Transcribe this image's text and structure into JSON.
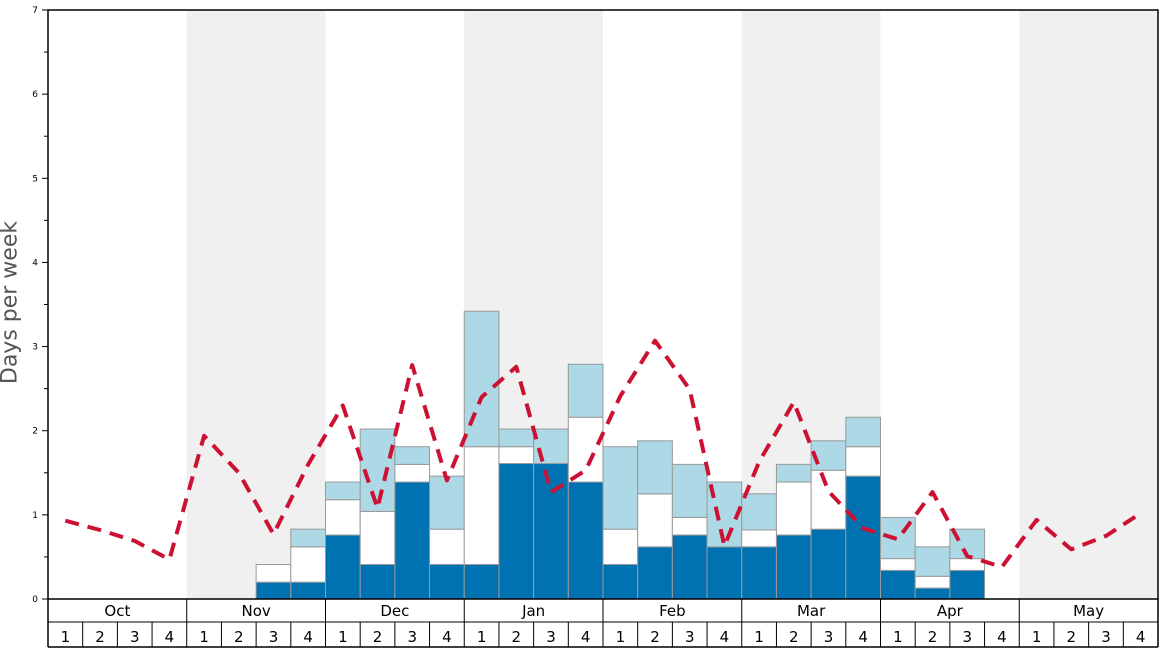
{
  "chart_data": {
    "type": "bar",
    "ylabel": "Days per week",
    "ylim": [
      0,
      7
    ],
    "y_ticks": [
      "0",
      "1",
      "2",
      "3",
      "4",
      "5",
      "6",
      "7"
    ],
    "months": [
      "Oct",
      "Nov",
      "Dec",
      "Jan",
      "Feb",
      "Mar",
      "Apr",
      "May"
    ],
    "weeks": [
      "1",
      "2",
      "3",
      "4"
    ],
    "shaded_months": [
      "Nov",
      "Jan",
      "Mar",
      "May"
    ],
    "categories": [
      "Oct 1",
      "Oct 2",
      "Oct 3",
      "Oct 4",
      "Nov 1",
      "Nov 2",
      "Nov 3",
      "Nov 4",
      "Dec 1",
      "Dec 2",
      "Dec 3",
      "Dec 4",
      "Jan 1",
      "Jan 2",
      "Jan 3",
      "Jan 4",
      "Feb 1",
      "Feb 2",
      "Feb 3",
      "Feb 4",
      "Mar 1",
      "Mar 2",
      "Mar 3",
      "Mar 4",
      "Apr 1",
      "Apr 2",
      "Apr 3",
      "Apr 4",
      "May 1",
      "May 2",
      "May 3",
      "May 4"
    ],
    "series": [
      {
        "color": "#0072b2",
        "values": [
          0,
          0,
          0,
          0,
          0,
          0,
          0.2,
          0.2,
          0.76,
          0.41,
          1.39,
          0.41,
          0.41,
          1.61,
          1.61,
          1.39,
          0.41,
          0.62,
          0.76,
          0.62,
          0.62,
          0.76,
          0.83,
          1.46,
          0.34,
          0.13,
          0.34,
          0,
          0,
          0,
          0,
          0
        ]
      },
      {
        "color": "#ffffff",
        "values": [
          0,
          0,
          0,
          0,
          0,
          0,
          0.21,
          0.42,
          0.42,
          0.63,
          0.21,
          0.42,
          1.4,
          0.2,
          0,
          0.77,
          0.42,
          0.63,
          0.21,
          0,
          0.2,
          0.63,
          0.7,
          0.35,
          0.14,
          0.14,
          0.14,
          0,
          0,
          0,
          0,
          0
        ]
      },
      {
        "color": "#add8e6",
        "values": [
          0,
          0,
          0,
          0,
          0,
          0,
          0,
          0.21,
          0.21,
          0.98,
          0.21,
          0.63,
          1.61,
          0.21,
          0.41,
          0.63,
          0.98,
          0.63,
          0.63,
          0.77,
          0.43,
          0.21,
          0.35,
          0.35,
          0.49,
          0.35,
          0.35,
          0,
          0,
          0,
          0,
          0
        ]
      }
    ],
    "trend_line": {
      "color": "#cc1133",
      "values": [
        0.93,
        0.82,
        0.69,
        0.47,
        1.94,
        1.5,
        0.77,
        1.6,
        2.3,
        1.08,
        2.78,
        1.41,
        2.4,
        2.76,
        1.27,
        1.53,
        2.41,
        3.07,
        2.49,
        0.63,
        1.63,
        2.34,
        1.28,
        0.84,
        0.71,
        1.27,
        0.51,
        0.38,
        0.94,
        0.59,
        0.75,
        1.02
      ]
    }
  }
}
